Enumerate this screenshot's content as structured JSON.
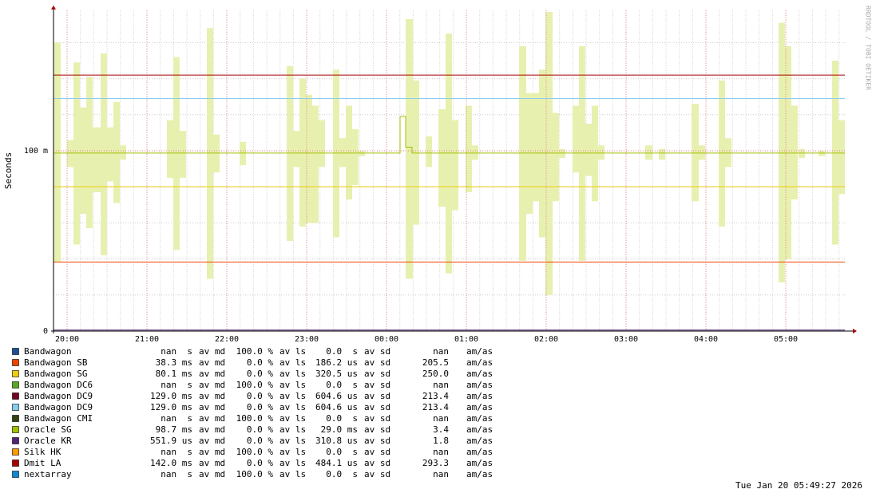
{
  "chart_data": {
    "type": "line",
    "y_label": "Seconds",
    "side_label": "RRDTOOL / TOBI OETIKER",
    "timestamp": "Tue Jan 20 05:49:27 2026",
    "xlim": [
      19.83,
      29.74
    ],
    "xticks": [
      {
        "value": 20,
        "label": "20:00"
      },
      {
        "value": 21,
        "label": "21:00"
      },
      {
        "value": 22,
        "label": "22:00"
      },
      {
        "value": 23,
        "label": "23:00"
      },
      {
        "value": 24,
        "label": "00:00"
      },
      {
        "value": 25,
        "label": "01:00"
      },
      {
        "value": 26,
        "label": "02:00"
      },
      {
        "value": 27,
        "label": "03:00"
      },
      {
        "value": 28,
        "label": "04:00"
      },
      {
        "value": 29,
        "label": "05:00"
      }
    ],
    "x_minor_step": 0.16667,
    "ylim": [
      0,
      0.178
    ],
    "yticks": [
      0,
      {
        "value": 0.1,
        "label": "100 m"
      }
    ],
    "y_minor_ticks": [
      0.02,
      0.04,
      0.06,
      0.08,
      0.12,
      0.14,
      0.16
    ],
    "grid": true,
    "stat_labels": [
      "av md",
      "av ls",
      "av sd",
      "am/as"
    ],
    "x": [
      19.83,
      24.17,
      24.17,
      24.24,
      24.24,
      24.32,
      24.32,
      29.74
    ],
    "series": [
      {
        "name": "Bandwagon",
        "color": "#1f4e99",
        "stats": [
          "nan  s",
          "100.0 %",
          "0.0  s",
          "nan"
        ]
      },
      {
        "name": "Bandwagon SB",
        "color": "#ee4400",
        "stats": [
          "38.3 ms",
          "0.0 %",
          "186.2 us",
          "205.5"
        ],
        "values": [
          0.0383,
          0.0383,
          0.0383,
          0.0383,
          0.0383,
          0.0383,
          0.0383,
          0.0383
        ]
      },
      {
        "name": "Bandwagon SG",
        "color": "#f0cc10",
        "stats": [
          "80.1 ms",
          "0.0 %",
          "320.5 us",
          "250.0"
        ],
        "values": [
          0.0801,
          0.0801,
          0.0801,
          0.0801,
          0.0801,
          0.0801,
          0.0801,
          0.0801
        ]
      },
      {
        "name": "Bandwagon DC6",
        "color": "#55aa22",
        "stats": [
          "nan  s",
          "100.0 %",
          "0.0  s",
          "nan"
        ]
      },
      {
        "name": "Bandwagon DC9",
        "color": "#770022",
        "stats": [
          "129.0 ms",
          "0.0 %",
          "604.6 us",
          "213.4"
        ],
        "values": [
          0.129,
          0.129,
          0.129,
          0.129,
          0.129,
          0.129,
          0.129,
          0.129
        ]
      },
      {
        "name": "Bandwagon DC9",
        "color": "#88ccee",
        "stats": [
          "129.0 ms",
          "0.0 %",
          "604.6 us",
          "213.4"
        ],
        "values": [
          0.129,
          0.129,
          0.129,
          0.129,
          0.129,
          0.129,
          0.129,
          0.129
        ]
      },
      {
        "name": "Bandwagon CMI",
        "color": "#334411",
        "stats": [
          "nan  s",
          "100.0 %",
          "0.0  s",
          "nan"
        ]
      },
      {
        "name": "Oracle SG",
        "color": "#a0c000",
        "stats": [
          "98.7 ms",
          "0.0 %",
          "29.0 ms",
          "3.4"
        ],
        "values": [
          0.0987,
          0.0987,
          0.119,
          0.119,
          0.102,
          0.102,
          0.0987,
          0.0987
        ],
        "smoke_color": "#e8f0b0",
        "range_x": [
          [
            19.83,
            19.92
          ],
          [
            20.0,
            20.08
          ],
          [
            20.08,
            20.16
          ],
          [
            20.16,
            20.24
          ],
          [
            20.24,
            20.32
          ],
          [
            20.32,
            20.42
          ],
          [
            20.42,
            20.5
          ],
          [
            20.5,
            20.58
          ],
          [
            20.58,
            20.66
          ],
          [
            20.66,
            20.74
          ],
          [
            21.25,
            21.33
          ],
          [
            21.33,
            21.41
          ],
          [
            21.41,
            21.49
          ],
          [
            21.75,
            21.83
          ],
          [
            21.83,
            21.91
          ],
          [
            22.16,
            22.24
          ],
          [
            22.75,
            22.83
          ],
          [
            22.83,
            22.91
          ],
          [
            22.91,
            22.99
          ],
          [
            22.99,
            23.07
          ],
          [
            23.07,
            23.15
          ],
          [
            23.15,
            23.23
          ],
          [
            23.33,
            23.41
          ],
          [
            23.41,
            23.49
          ],
          [
            23.49,
            23.57
          ],
          [
            23.57,
            23.65
          ],
          [
            23.65,
            23.73
          ],
          [
            24.24,
            24.33
          ],
          [
            24.33,
            24.41
          ],
          [
            24.49,
            24.57
          ],
          [
            24.65,
            24.74
          ],
          [
            24.74,
            24.82
          ],
          [
            24.82,
            24.9
          ],
          [
            24.99,
            25.07
          ],
          [
            25.07,
            25.15
          ],
          [
            25.66,
            25.75
          ],
          [
            25.75,
            25.83
          ],
          [
            25.83,
            25.91
          ],
          [
            25.91,
            25.99
          ],
          [
            25.99,
            26.08
          ],
          [
            26.08,
            26.16
          ],
          [
            26.16,
            26.24
          ],
          [
            26.33,
            26.41
          ],
          [
            26.41,
            26.49
          ],
          [
            26.49,
            26.57
          ],
          [
            26.57,
            26.65
          ],
          [
            26.65,
            26.73
          ],
          [
            27.24,
            27.33
          ],
          [
            27.41,
            27.49
          ],
          [
            27.82,
            27.91
          ],
          [
            27.91,
            27.99
          ],
          [
            28.16,
            28.24
          ],
          [
            28.24,
            28.32
          ],
          [
            28.91,
            28.99
          ],
          [
            28.99,
            29.07
          ],
          [
            29.07,
            29.15
          ],
          [
            29.16,
            29.24
          ],
          [
            29.41,
            29.49
          ],
          [
            29.58,
            29.66
          ],
          [
            29.66,
            29.74
          ]
        ],
        "ranges": [
          [
            0.038,
            0.16
          ],
          [
            0.091,
            0.106
          ],
          [
            0.048,
            0.149
          ],
          [
            0.065,
            0.124
          ],
          [
            0.057,
            0.141
          ],
          [
            0.077,
            0.113
          ],
          [
            0.042,
            0.154
          ],
          [
            0.083,
            0.113
          ],
          [
            0.071,
            0.127
          ],
          [
            0.095,
            0.103
          ],
          [
            0.085,
            0.117
          ],
          [
            0.045,
            0.152
          ],
          [
            0.085,
            0.111
          ],
          [
            0.029,
            0.168
          ],
          [
            0.088,
            0.109
          ],
          [
            0.092,
            0.105
          ],
          [
            0.05,
            0.147
          ],
          [
            0.091,
            0.111
          ],
          [
            0.058,
            0.14
          ],
          [
            0.06,
            0.131
          ],
          [
            0.06,
            0.125
          ],
          [
            0.091,
            0.117
          ],
          [
            0.052,
            0.145
          ],
          [
            0.091,
            0.107
          ],
          [
            0.073,
            0.125
          ],
          [
            0.081,
            0.112
          ],
          [
            0.097,
            0.1
          ],
          [
            0.029,
            0.173
          ],
          [
            0.059,
            0.139
          ],
          [
            0.091,
            0.108
          ],
          [
            0.069,
            0.123
          ],
          [
            0.032,
            0.165
          ],
          [
            0.067,
            0.117
          ],
          [
            0.077,
            0.125
          ],
          [
            0.095,
            0.103
          ],
          [
            0.039,
            0.158
          ],
          [
            0.065,
            0.132
          ],
          [
            0.072,
            0.132
          ],
          [
            0.052,
            0.145
          ],
          [
            0.02,
            0.177
          ],
          [
            0.072,
            0.121
          ],
          [
            0.096,
            0.101
          ],
          [
            0.088,
            0.125
          ],
          [
            0.039,
            0.158
          ],
          [
            0.086,
            0.115
          ],
          [
            0.072,
            0.125
          ],
          [
            0.095,
            0.103
          ],
          [
            0.095,
            0.103
          ],
          [
            0.095,
            0.101
          ],
          [
            0.072,
            0.126
          ],
          [
            0.095,
            0.103
          ],
          [
            0.058,
            0.139
          ],
          [
            0.091,
            0.107
          ],
          [
            0.027,
            0.171
          ],
          [
            0.04,
            0.158
          ],
          [
            0.073,
            0.125
          ],
          [
            0.096,
            0.101
          ],
          [
            0.097,
            0.1
          ],
          [
            0.048,
            0.15
          ],
          [
            0.076,
            0.117
          ]
        ]
      },
      {
        "name": "Oracle KR",
        "color": "#552277",
        "stats": [
          "551.9 us",
          "0.0 %",
          "310.8 us",
          "1.8"
        ],
        "values": [
          0.00055,
          0.00055,
          0.00055,
          0.00055,
          0.00055,
          0.00055,
          0.00055,
          0.00055
        ]
      },
      {
        "name": "Silk HK",
        "color": "#ff9900",
        "stats": [
          "nan  s",
          "100.0 %",
          "0.0  s",
          "nan"
        ]
      },
      {
        "name": "Dmit LA",
        "color": "#aa0000",
        "stats": [
          "142.0 ms",
          "0.0 %",
          "484.1 us",
          "293.3"
        ],
        "values": [
          0.142,
          0.142,
          0.142,
          0.142,
          0.142,
          0.142,
          0.142,
          0.142
        ]
      },
      {
        "name": "nextarray",
        "color": "#1188cc",
        "stats": [
          "nan  s",
          "100.0 %",
          "0.0  s",
          "nan"
        ]
      }
    ]
  }
}
